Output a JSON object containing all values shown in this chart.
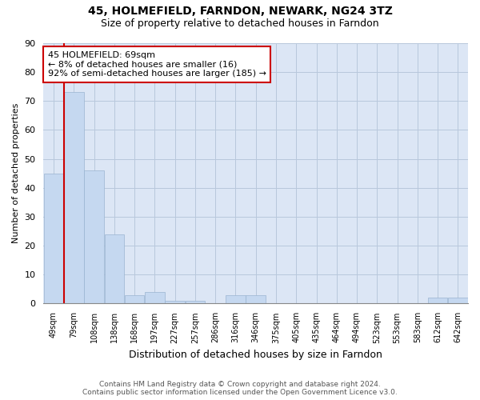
{
  "title1": "45, HOLMEFIELD, FARNDON, NEWARK, NG24 3TZ",
  "title2": "Size of property relative to detached houses in Farndon",
  "xlabel": "Distribution of detached houses by size in Farndon",
  "ylabel": "Number of detached properties",
  "categories": [
    "49sqm",
    "79sqm",
    "108sqm",
    "138sqm",
    "168sqm",
    "197sqm",
    "227sqm",
    "257sqm",
    "286sqm",
    "316sqm",
    "346sqm",
    "375sqm",
    "405sqm",
    "435sqm",
    "464sqm",
    "494sqm",
    "523sqm",
    "553sqm",
    "583sqm",
    "612sqm",
    "642sqm"
  ],
  "values": [
    45,
    73,
    46,
    24,
    3,
    4,
    1,
    1,
    0,
    3,
    3,
    0,
    0,
    0,
    0,
    0,
    0,
    0,
    0,
    2,
    2
  ],
  "bar_color": "#c5d8f0",
  "bar_edge_color": "#9ab4d0",
  "annotation_text": "45 HOLMEFIELD: 69sqm\n← 8% of detached houses are smaller (16)\n92% of semi-detached houses are larger (185) →",
  "annotation_box_color": "#ffffff",
  "annotation_border_color": "#cc0000",
  "redline_x": 0.5,
  "footer1": "Contains HM Land Registry data © Crown copyright and database right 2024.",
  "footer2": "Contains public sector information licensed under the Open Government Licence v3.0.",
  "bg_color": "#ffffff",
  "plot_bg_color": "#dce6f5",
  "grid_color": "#b8c8dc",
  "ylim": [
    0,
    90
  ],
  "yticks": [
    0,
    10,
    20,
    30,
    40,
    50,
    60,
    70,
    80,
    90
  ]
}
